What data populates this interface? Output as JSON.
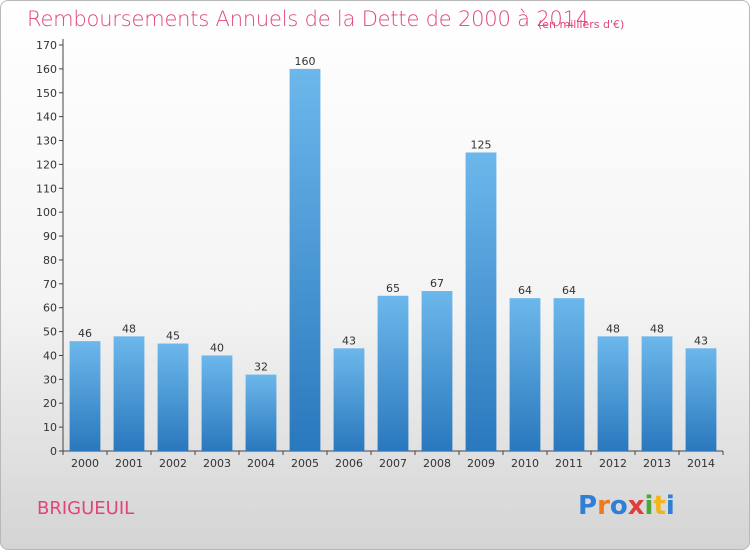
{
  "header": {
    "title": "Remboursements Annuels de la Dette de 2000 à 2014",
    "subtitle": "(en milliers d'€)"
  },
  "footer": {
    "commune": "BRIGUEUIL",
    "logo_text": "Proxiti",
    "logo_letters": [
      {
        "ch": "P",
        "color": "#2f7fd4"
      },
      {
        "ch": "r",
        "color": "#f07a1a"
      },
      {
        "ch": "o",
        "color": "#2f7fd4"
      },
      {
        "ch": "x",
        "color": "#e23d3d"
      },
      {
        "ch": "i",
        "color": "#4aa83a"
      },
      {
        "ch": "t",
        "color": "#f2b51c"
      },
      {
        "ch": "i",
        "color": "#2f7fd4"
      }
    ]
  },
  "chart_data": {
    "type": "bar",
    "title": "Remboursements Annuels de la Dette de 2000 à 2014",
    "subtitle": "(en milliers d'€)",
    "categories": [
      "2000",
      "2001",
      "2002",
      "2003",
      "2004",
      "2005",
      "2006",
      "2007",
      "2008",
      "2009",
      "2010",
      "2011",
      "2012",
      "2013",
      "2014"
    ],
    "values": [
      46,
      48,
      45,
      40,
      32,
      160,
      43,
      65,
      67,
      125,
      64,
      64,
      48,
      48,
      43
    ],
    "ylim": [
      0,
      170
    ],
    "ytick_step": 10,
    "grid": false,
    "bar_color_top": "#6cb8ec",
    "bar_color_bottom": "#2a78bd"
  }
}
